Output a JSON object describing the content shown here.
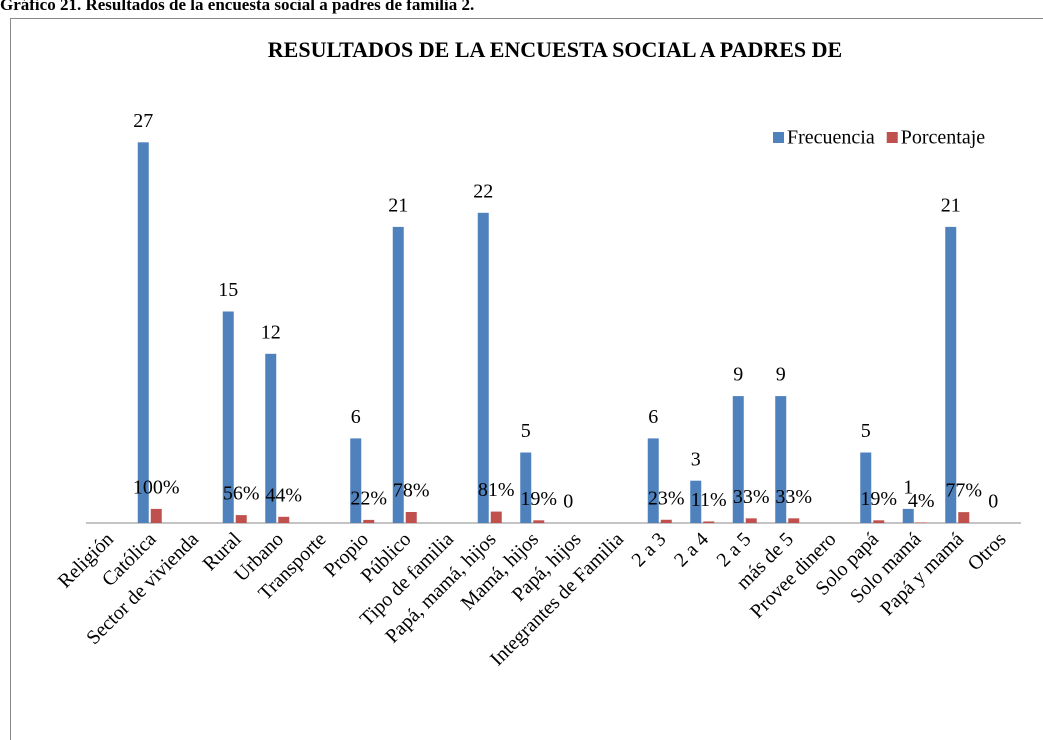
{
  "caption": "Gráfico 21. Resultados de la encuesta social a padres de familia 2.",
  "chart_data": {
    "type": "bar",
    "title": "RESULTADOS DE LA ENCUESTA SOCIAL A PADRES DE",
    "categories": [
      "Religión",
      "Católica",
      "Sector de vivienda",
      "Rural",
      "Urbano",
      "Transporte",
      "Propio",
      "Público",
      "Tipo de familia",
      "Papá, mamá, hijos",
      "Mamá, hijos",
      "Papá, hijos",
      "Integrantes de Familia",
      "2 a 3",
      "2 a 4",
      "2 a 5",
      "más de 5",
      "Provee dinero",
      "Solo papá",
      "Solo mamá",
      "Papá y mamá",
      "Otros"
    ],
    "series": [
      {
        "name": "Frecuencia",
        "color": "#4f81bd",
        "values": [
          null,
          27,
          null,
          15,
          12,
          null,
          6,
          21,
          null,
          22,
          5,
          0,
          null,
          6,
          3,
          9,
          9,
          null,
          5,
          1,
          21,
          0
        ]
      },
      {
        "name": "Porcentaje",
        "color": "#c0504d",
        "values": [
          null,
          1,
          null,
          0.56,
          0.44,
          null,
          0.22,
          0.78,
          null,
          0.81,
          0.19,
          null,
          null,
          0.23,
          0.11,
          0.33,
          0.33,
          null,
          0.19,
          0.04,
          0.77,
          null
        ],
        "value_labels": [
          null,
          "100%",
          null,
          "56%",
          "44%",
          null,
          "22%",
          "78%",
          null,
          "81%",
          "19%",
          null,
          null,
          "23%",
          "11%",
          "33%",
          "33%",
          null,
          "19%",
          "4%",
          "77%",
          null
        ]
      }
    ],
    "ylim": [
      0,
      30
    ],
    "legend": "top-right"
  }
}
